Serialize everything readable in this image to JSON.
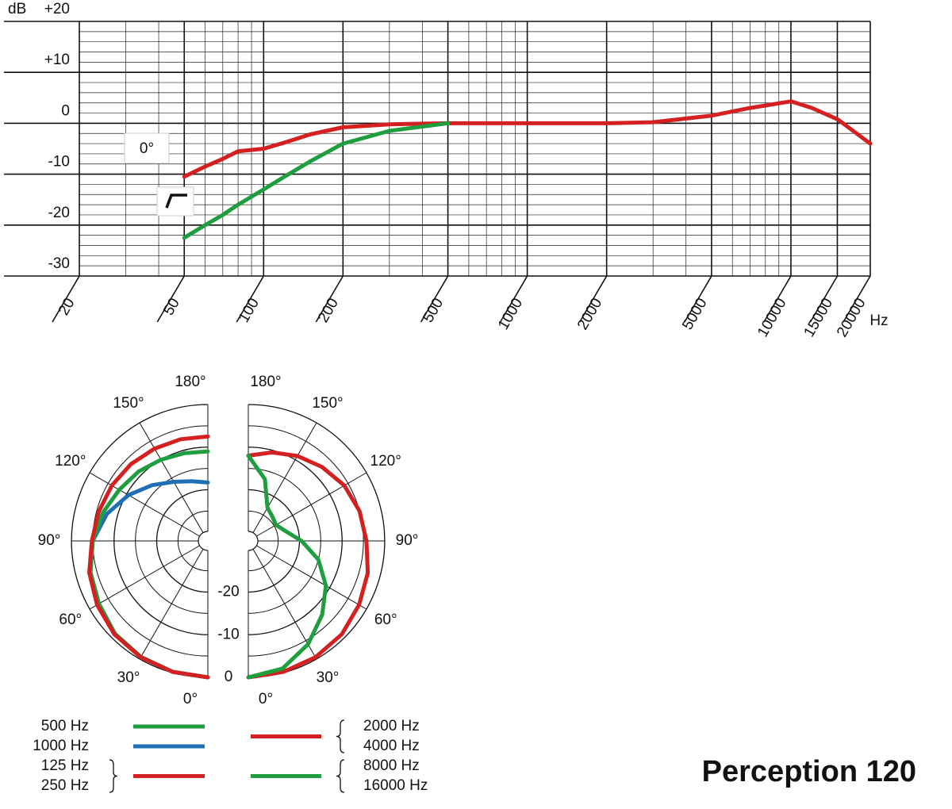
{
  "chart_data": [
    {
      "type": "line",
      "y_label": "dB",
      "x_label": "Hz",
      "log_x": true,
      "grid": true,
      "x": [
        50,
        60,
        70,
        80,
        100,
        120,
        150,
        200,
        300,
        500,
        1000,
        2000,
        3000,
        5000,
        7000,
        10000,
        12000,
        15000,
        20000
      ],
      "xlim": [
        20,
        20000
      ],
      "xticks": [
        20,
        50,
        100,
        200,
        500,
        1000,
        2000,
        5000,
        10000,
        15000,
        20000
      ],
      "ylim": [
        -30,
        20
      ],
      "yticks": [
        {
          "value": 20,
          "label": "+20"
        },
        {
          "value": 10,
          "label": "+10"
        },
        0,
        -10,
        -20,
        -30
      ],
      "annotations": [
        "0°"
      ],
      "series": [
        {
          "color": "#d42020",
          "values": [
            -10.5,
            -8.5,
            -7,
            -5.5,
            -5,
            -3.8,
            -2.2,
            -0.8,
            -0.2,
            0,
            0,
            0,
            0.2,
            1.5,
            3,
            4.3,
            3,
            0.8,
            -4
          ]
        },
        {
          "color": "#1e9e3e",
          "values": [
            -22.5,
            -20,
            -18,
            -16,
            -13,
            -10.5,
            -7.5,
            -4,
            -1.5,
            0,
            null,
            null,
            null,
            null,
            null,
            null,
            null,
            null,
            null
          ]
        }
      ]
    },
    {
      "type": "polar",
      "angles": [
        0,
        15,
        30,
        45,
        60,
        75,
        90,
        105,
        120,
        135,
        150,
        165,
        180
      ],
      "thetaticks": [
        {
          "value": 0,
          "label": "0°"
        },
        {
          "value": 30,
          "label": "30°"
        },
        {
          "value": 60,
          "label": "60°"
        },
        {
          "value": 90,
          "label": "90°"
        },
        {
          "value": 120,
          "label": "120°"
        },
        {
          "value": 150,
          "label": "150°"
        },
        {
          "value": 180,
          "label": "180°"
        }
      ],
      "rlim": [
        -32,
        0
      ],
      "rticks": [
        -20,
        -10,
        0
      ],
      "series": [
        {
          "name": [
            "1000 Hz"
          ],
          "side": "left",
          "color": "#1f6fb5",
          "values": [
            0,
            -0.2,
            -0.6,
            -1.2,
            -2.5,
            -3.5,
            -5,
            -7.5,
            -10.5,
            -13.5,
            -16,
            -17.5,
            -18.3
          ]
        },
        {
          "name": [
            "500 Hz"
          ],
          "side": "left",
          "color": "#1e9e3e",
          "values": [
            0,
            -0.2,
            -0.6,
            -1.2,
            -2.5,
            -3.5,
            -5,
            -6.5,
            -8,
            -9,
            -10,
            -10.7,
            -11
          ]
        },
        {
          "name": [
            "125 Hz",
            "250 Hz"
          ],
          "side": "left",
          "color": "#d42020",
          "values": [
            0,
            -0.2,
            -0.5,
            -1,
            -2,
            -3.2,
            -4.8,
            -5.5,
            -6,
            -6.5,
            -7,
            -7.3,
            -7.5
          ]
        },
        {
          "name": [
            "2000 Hz",
            "4000 Hz"
          ],
          "side": "right",
          "color": "#d42020",
          "values": [
            0,
            -0.2,
            -0.5,
            -1,
            -2,
            -3,
            -4.3,
            -5,
            -6,
            -7.5,
            -9,
            -10.5,
            -12
          ]
        },
        {
          "name": [
            "8000 Hz",
            "16000 Hz"
          ],
          "side": "right",
          "color": "#1e9e3e",
          "values": [
            0,
            -1,
            -4,
            -7.5,
            -11,
            -15,
            -19.5,
            -23,
            -24.5,
            -24,
            -23,
            -17,
            -12
          ]
        }
      ]
    }
  ],
  "product_name": "Perception 120"
}
